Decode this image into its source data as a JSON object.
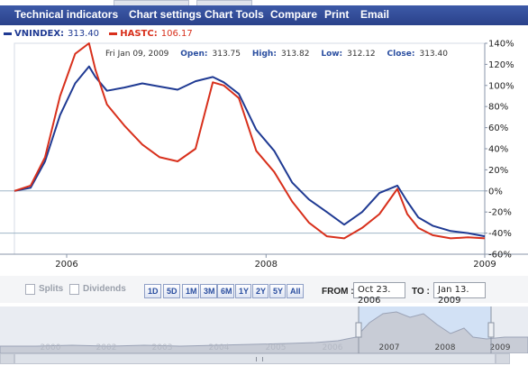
{
  "menu": {
    "items": [
      "Technical indicators",
      "Chart settings",
      "Chart Tools",
      "Compare",
      "Print",
      "Email"
    ]
  },
  "legend": {
    "series1_label": "VNINDEX:",
    "series1_value": "313.40",
    "series2_label": "HASTC:",
    "series2_value": "106.17"
  },
  "tooltip": {
    "date": "Fri Jan 09, 2009",
    "open_label": "Open:",
    "open_value": "313.75",
    "high_label": "High:",
    "high_value": "313.82",
    "low_label": "Low:",
    "low_value": "312.12",
    "close_label": "Close:",
    "close_value": "313.40"
  },
  "controls": {
    "splits_label": "Splits",
    "dividends_label": "Dividends",
    "ranges": [
      "1D",
      "5D",
      "1M",
      "3M",
      "6M",
      "1Y",
      "2Y",
      "5Y",
      "All"
    ],
    "from_label": "FROM :",
    "from_value": "Oct 23. 2006",
    "to_label": "TO :",
    "to_value": "Jan 13. 2009"
  },
  "navigator": {
    "years": [
      "2000",
      "2002",
      "2003",
      "2004",
      "2005",
      "2006",
      "2007",
      "2008",
      "2009"
    ]
  },
  "chart_data": {
    "type": "line",
    "xlabel": "",
    "ylabel": "",
    "x_ticks": [
      "2006",
      "2008",
      "2009"
    ],
    "y_ticks": [
      "140%",
      "120%",
      "100%",
      "80%",
      "60%",
      "40%",
      "20%",
      "0%",
      "-20%",
      "-40%",
      "-60%"
    ],
    "ylim": [
      -60,
      140
    ],
    "x": [
      "2006-10-23",
      "2006-11-20",
      "2006-12-15",
      "2007-01-10",
      "2007-02-05",
      "2007-03-01",
      "2007-03-12",
      "2007-04-01",
      "2007-05-01",
      "2007-06-01",
      "2007-07-01",
      "2007-08-01",
      "2007-09-01",
      "2007-10-01",
      "2007-10-20",
      "2007-11-15",
      "2007-12-15",
      "2008-01-15",
      "2008-02-15",
      "2008-03-15",
      "2008-04-15",
      "2008-05-15",
      "2008-06-15",
      "2008-07-15",
      "2008-08-15",
      "2008-09-01",
      "2008-09-20",
      "2008-10-15",
      "2008-11-15",
      "2008-12-15",
      "2009-01-13"
    ],
    "series": [
      {
        "name": "VNINDEX",
        "color": "#1f3a93",
        "values": [
          0,
          3,
          28,
          72,
          102,
          118,
          108,
          95,
          98,
          102,
          99,
          96,
          104,
          108,
          103,
          92,
          58,
          38,
          8,
          -8,
          -20,
          -32,
          -20,
          -2,
          5,
          -10,
          -25,
          -33,
          -38,
          -40,
          -43
        ]
      },
      {
        "name": "HASTC",
        "color": "#d8301c",
        "values": [
          0,
          5,
          32,
          90,
          130,
          140,
          115,
          82,
          62,
          44,
          32,
          28,
          40,
          103,
          100,
          88,
          38,
          18,
          -10,
          -30,
          -43,
          -45,
          -35,
          -22,
          2,
          -22,
          -35,
          -42,
          -45,
          -44,
          -45
        ]
      }
    ]
  }
}
